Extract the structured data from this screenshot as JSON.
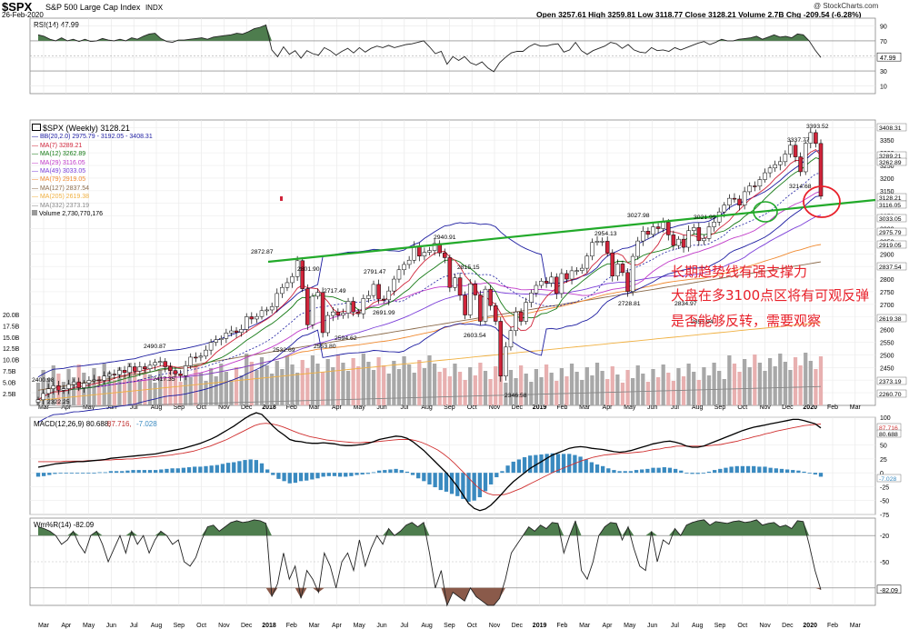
{
  "header": {
    "ticker": "$SPX",
    "name": "S&P 500 Large Cap Index",
    "exchange": "INDX",
    "date": "26-Feb-2020",
    "quote_text": "Open 3257.61  High 3259.81  Low 3118.77  Close 3128.21  Volume 2.7B  Chg -209.54 (-6.28%)",
    "source": "@ StockCharts.com"
  },
  "annotations": [
    "长期趋势线有强支撑力",
    "大盘在多3100点区将有可观反弹",
    "是否能够反转，需要观察"
  ],
  "colors": {
    "up": "#ffffff",
    "down": "#d0243a",
    "trendline": "#22aa2a",
    "circle_red": "#e8202a",
    "circle_green": "#22aa2a",
    "bb": "#1b1ba0",
    "ma7": "#d0243a",
    "ma12": "#157a15",
    "ma29": "#c038c8",
    "ma49": "#7a3dd8",
    "ma79": "#f08a30",
    "ma127": "#8a6a4a",
    "ma205": "#f0b040",
    "ma332": "#888888",
    "osc_fill": "#4e7d4e",
    "osc_fill_low": "#8a5a4a",
    "hist": "#3a8ac0",
    "volume_up": "#a8a8a8",
    "volume_down": "#e8b0b0"
  },
  "chart_data": [
    {
      "type": "line",
      "title": "RSI(14) 47.99",
      "ylim": [
        0,
        100
      ],
      "y_ticks": [
        10,
        30,
        47.99,
        70,
        90
      ],
      "overbought": 70,
      "oversold": 30,
      "values": [
        78,
        76,
        72,
        70,
        74,
        70,
        72,
        69,
        72,
        69,
        70,
        73,
        71,
        70,
        72,
        70,
        74,
        72,
        76,
        79,
        80,
        73,
        69,
        68,
        71,
        71,
        72,
        73,
        74,
        72,
        75,
        76,
        77,
        78,
        80,
        79,
        82,
        86,
        88,
        91,
        58,
        49,
        62,
        52,
        57,
        47,
        57,
        53,
        51,
        61,
        57,
        51,
        56,
        60,
        54,
        61,
        55,
        60,
        63,
        61,
        64,
        61,
        63,
        65,
        66,
        68,
        70,
        62,
        53,
        56,
        39,
        49,
        44,
        49,
        41,
        38,
        42,
        34,
        29,
        41,
        48,
        54,
        56,
        56,
        62,
        66,
        63,
        63,
        65,
        66,
        55,
        58,
        68,
        57,
        52,
        57,
        60,
        63,
        68,
        66,
        60,
        65,
        58,
        55,
        54,
        61,
        57,
        58,
        56,
        61,
        58,
        61,
        64,
        67,
        69,
        65,
        68,
        72,
        70,
        70,
        72,
        73,
        74,
        76,
        72,
        75,
        78,
        75,
        76,
        74,
        79,
        78,
        70,
        58,
        48
      ]
    },
    {
      "type": "candlestick",
      "title": "$SPX (Weekly) 3128.21",
      "ylim": [
        2300,
        3430
      ],
      "y_ticks": [
        2350,
        2400,
        2450,
        2500,
        2550,
        2600,
        2650,
        2700,
        2750,
        2800,
        2850,
        2900,
        2950,
        3000,
        3050,
        3100,
        3150,
        3200,
        3250,
        3300,
        3350,
        3400
      ],
      "right_labels": [
        "3408.31",
        "3289.21",
        "3262.89",
        "3128.21",
        "3116.05",
        "3033.05",
        "2975.79",
        "2919.05",
        "2837.54",
        "2619.38",
        "2373.19",
        "2260.70"
      ],
      "legend": [
        "$SPX (Weekly) 3128.21",
        "BB(20,2.0) 2975.79 - 3192.05 - 3408.31",
        "MA(7) 3289.21",
        "MA(12) 3262.89",
        "MA(29) 3116.05",
        "MA(49) 3033.05",
        "MA(79) 2919.05",
        "MA(127) 2837.54",
        "MA(205) 2619.38",
        "MA(332) 2373.19",
        "Volume 2,730,770,176"
      ],
      "close": [
        2322.25,
        2347,
        2366,
        2378,
        2360,
        2366,
        2383,
        2393,
        2370,
        2388,
        2399,
        2400.98,
        2399,
        2416,
        2424,
        2422,
        2439,
        2430,
        2453,
        2436,
        2453,
        2445,
        2459,
        2470,
        2474,
        2453,
        2438,
        2425,
        2417.35,
        2457,
        2491,
        2490.87,
        2495,
        2519,
        2550,
        2560,
        2565,
        2587,
        2595,
        2589,
        2601,
        2651,
        2642,
        2652,
        2675,
        2678,
        2691,
        2743,
        2767,
        2786,
        2810,
        2872.87,
        2762,
        2619,
        2732,
        2747,
        2588,
        2656,
        2670,
        2657,
        2665,
        2712,
        2670,
        2663,
        2723,
        2735,
        2779,
        2721,
        2718,
        2753,
        2800,
        2837,
        2858,
        2875,
        2930,
        2891,
        2906,
        2913,
        2940.91,
        2904,
        2885,
        2767,
        2805,
        2736,
        2658,
        2781,
        2737,
        2633,
        2760,
        2695,
        2633,
        2416,
        2531,
        2596,
        2670,
        2633,
        2708,
        2745,
        2775,
        2792,
        2784,
        2808,
        2743,
        2822,
        2800,
        2833,
        2834,
        2843,
        2891,
        2945,
        2950,
        2950,
        2904,
        2812,
        2860,
        2826,
        2751,
        2890,
        2951,
        2990,
        2977,
        3007,
        3000,
        3025,
        2975,
        2933,
        2958,
        2926,
        2992,
        3004,
        2952,
        2961,
        3007,
        3026,
        3066,
        3093,
        3120,
        3117,
        3093,
        3146,
        3169,
        3168,
        3194,
        3221,
        3240,
        3253,
        3265,
        3295,
        3330,
        3284,
        3225,
        3338,
        3380,
        3337,
        3128.21
      ],
      "annotations_hl": [
        {
          "label": "2400.98",
          "value": 2400.98
        },
        {
          "label": "2322.25",
          "value": 2322.25
        },
        {
          "label": "2417.35",
          "value": 2417.35
        },
        {
          "label": "2490.87",
          "value": 2490.87
        },
        {
          "label": "2872.87",
          "value": 2872.87
        },
        {
          "label": "2532.69",
          "value": 2532.69
        },
        {
          "label": "2801.90",
          "value": 2801.9
        },
        {
          "label": "2553.80",
          "value": 2553.8
        },
        {
          "label": "2717.49",
          "value": 2717.49
        },
        {
          "label": "2594.62",
          "value": 2594.62
        },
        {
          "label": "2791.47",
          "value": 2791.47
        },
        {
          "label": "2691.99",
          "value": 2691.99
        },
        {
          "label": "2940.91",
          "value": 2940.91
        },
        {
          "label": "2815.15",
          "value": 2815.15
        },
        {
          "label": "2603.54",
          "value": 2603.54
        },
        {
          "label": "2346.58",
          "value": 2346.58
        },
        {
          "label": "2954.13",
          "value": 2954.13
        },
        {
          "label": "3027.98",
          "value": 3027.98
        },
        {
          "label": "2728.81",
          "value": 2728.81
        },
        {
          "label": "2834.97",
          "value": 2834.97
        },
        {
          "label": "3021.99",
          "value": 3021.99
        },
        {
          "label": "2855.94",
          "value": 2855.94
        },
        {
          "label": "3337.77",
          "value": 3337.77
        },
        {
          "label": "3393.52",
          "value": 3393.52
        },
        {
          "label": "3214.68",
          "value": 3214.68
        }
      ],
      "trendline": [
        [
          2872.87,
          "2018-01"
        ],
        [
          3128.21,
          "2020-02"
        ]
      ],
      "volume_axis": [
        "20.0B",
        "17.5B",
        "15.0B",
        "12.5B",
        "10.0B",
        "7.5B",
        "5.0B",
        "2.5B"
      ]
    },
    {
      "type": "line",
      "title": "MACD(12,26,9) 80.688, 87.716, -7.028",
      "ylim": [
        -75,
        100
      ],
      "y_ticks": [
        100,
        87.716,
        80.688,
        50,
        25,
        0,
        -7.028,
        -25,
        -50,
        -75
      ],
      "macd": [
        10,
        12,
        14,
        16,
        17,
        18,
        19,
        20,
        20,
        21,
        22,
        23,
        24,
        26,
        27,
        28,
        29,
        30,
        31,
        32,
        33,
        34,
        36,
        38,
        40,
        42,
        44,
        47,
        50,
        53,
        57,
        61,
        66,
        72,
        78,
        84,
        91,
        98,
        104,
        108,
        105,
        95,
        84,
        75,
        68,
        60,
        57,
        56,
        54,
        53,
        53,
        54,
        53,
        52,
        50,
        49,
        49,
        50,
        51,
        53,
        56,
        60,
        62,
        64,
        66,
        65,
        62,
        56,
        48,
        40,
        30,
        20,
        10,
        0,
        -12,
        -25,
        -40,
        -55,
        -64,
        -68,
        -65,
        -58,
        -48,
        -37,
        -26,
        -16,
        -8,
        0,
        8,
        14,
        20,
        26,
        32,
        36,
        40,
        44,
        46,
        47,
        46,
        44,
        43,
        42,
        40,
        38,
        37,
        38,
        40,
        43,
        46,
        49,
        52,
        54,
        56,
        57,
        55,
        52,
        48,
        46,
        46,
        48,
        52,
        56,
        60,
        64,
        68,
        72,
        76,
        79,
        82,
        84,
        86,
        88,
        90,
        92,
        94,
        96,
        96,
        94,
        91,
        88,
        80.688
      ],
      "signal": [
        20,
        20,
        20,
        20,
        20,
        21,
        21,
        21,
        21,
        22,
        22,
        22,
        23,
        23,
        24,
        24,
        25,
        25,
        26,
        27,
        28,
        29,
        30,
        31,
        32,
        34,
        35,
        37,
        39,
        42,
        45,
        48,
        52,
        56,
        60,
        65,
        70,
        75,
        80,
        85,
        88,
        89,
        88,
        86,
        83,
        79,
        75,
        71,
        68,
        65,
        63,
        61,
        59,
        58,
        57,
        56,
        55,
        54,
        54,
        55,
        55,
        56,
        57,
        58,
        59,
        60,
        60,
        60,
        58,
        55,
        51,
        46,
        41,
        34,
        26,
        17,
        7,
        -3,
        -14,
        -24,
        -32,
        -37,
        -40,
        -40,
        -39,
        -36,
        -32,
        -28,
        -23,
        -18,
        -13,
        -8,
        -3,
        2,
        6,
        10,
        14,
        18,
        22,
        25,
        28,
        30,
        32,
        33,
        34,
        35,
        35,
        36,
        37,
        38,
        40,
        42,
        43,
        45,
        46,
        48,
        48,
        48,
        48,
        48,
        48,
        49,
        50,
        51,
        53,
        55,
        57,
        60,
        62,
        65,
        67,
        70,
        72,
        75,
        77,
        79,
        81,
        83,
        85,
        86,
        87,
        87.716
      ],
      "histogram": [
        -7,
        -6,
        -4,
        -2,
        -1,
        0,
        0,
        0,
        0,
        0,
        0,
        1,
        1,
        3,
        3,
        3,
        4,
        5,
        5,
        5,
        5,
        5,
        6,
        7,
        8,
        8,
        9,
        10,
        11,
        11,
        12,
        13,
        14,
        16,
        18,
        19,
        21,
        23,
        24,
        23,
        17,
        6,
        -4,
        -11,
        -15,
        -19,
        -18,
        -15,
        -14,
        -12,
        -10,
        -7,
        -6,
        -6,
        -7,
        -7,
        -6,
        -4,
        -3,
        -2,
        1,
        4,
        5,
        6,
        7,
        5,
        2,
        -4,
        -10,
        -15,
        -21,
        -26,
        -31,
        -34,
        -38,
        -42,
        -47,
        -52,
        -50,
        -44,
        -33,
        -21,
        -8,
        3,
        13,
        20,
        24,
        28,
        31,
        32,
        33,
        34,
        35,
        34,
        34,
        34,
        32,
        29,
        24,
        19,
        15,
        12,
        8,
        5,
        3,
        3,
        3,
        5,
        6,
        7,
        9,
        9,
        10,
        9,
        7,
        4,
        0,
        -2,
        -2,
        -1,
        2,
        5,
        7,
        9,
        11,
        12,
        12,
        12,
        12,
        11,
        11,
        9,
        8,
        7,
        6,
        5,
        4,
        2,
        -1,
        -3,
        -7.028
      ]
    },
    {
      "type": "line",
      "title": "Wm%R(14) -82.09",
      "ylim": [
        -100,
        0
      ],
      "y_ticks": [
        -20,
        -50,
        -82.09
      ],
      "values": [
        -10,
        -12,
        -15,
        -20,
        -30,
        -25,
        -15,
        -30,
        -40,
        -20,
        -15,
        -30,
        -50,
        -35,
        -20,
        -40,
        -15,
        -30,
        -20,
        -40,
        -25,
        -15,
        -20,
        -30,
        -25,
        -50,
        -55,
        -45,
        -25,
        -10,
        -8,
        -15,
        -10,
        -5,
        -3,
        -5,
        -4,
        -2,
        -3,
        -6,
        -90,
        -75,
        -40,
        -70,
        -55,
        -92,
        -60,
        -70,
        -85,
        -40,
        -55,
        -80,
        -50,
        -40,
        -60,
        -25,
        -55,
        -35,
        -20,
        -30,
        -12,
        -20,
        -15,
        -8,
        -5,
        -10,
        -5,
        -40,
        -80,
        -60,
        -100,
        -85,
        -90,
        -95,
        -80,
        -90,
        -95,
        -100,
        -105,
        -92,
        -70,
        -40,
        -30,
        -20,
        -10,
        -15,
        -8,
        -12,
        -5,
        -6,
        -40,
        -20,
        -3,
        -60,
        -70,
        -50,
        -20,
        -10,
        -5,
        -6,
        -25,
        -10,
        -35,
        -55,
        -60,
        -15,
        -50,
        -25,
        -30,
        -12,
        -20,
        -8,
        -5,
        -3,
        -2,
        -8,
        -4,
        -5,
        -6,
        -4,
        -3,
        -5,
        -4,
        -2,
        -8,
        -6,
        -5,
        -10,
        -8,
        -12,
        -3,
        -4,
        -30,
        -60,
        -82.09
      ],
      "right_labels": [
        "-20",
        "-50",
        "-82.09"
      ]
    }
  ],
  "time_axis": {
    "labels": [
      "Mar",
      "Apr",
      "May",
      "Jun",
      "Jul",
      "Aug",
      "Sep",
      "Oct",
      "Nov",
      "Dec",
      "2018",
      "Feb",
      "Mar",
      "Apr",
      "May",
      "Jun",
      "Jul",
      "Aug",
      "Sep",
      "Oct",
      "Nov",
      "Dec",
      "2019",
      "Feb",
      "Mar",
      "Apr",
      "May",
      "Jun",
      "Jul",
      "Aug",
      "Sep",
      "Oct",
      "Nov",
      "Dec",
      "2020",
      "Feb",
      "Mar",
      "Apr",
      "May"
    ],
    "bold_years": [
      "2018",
      "2019",
      "2020"
    ]
  }
}
